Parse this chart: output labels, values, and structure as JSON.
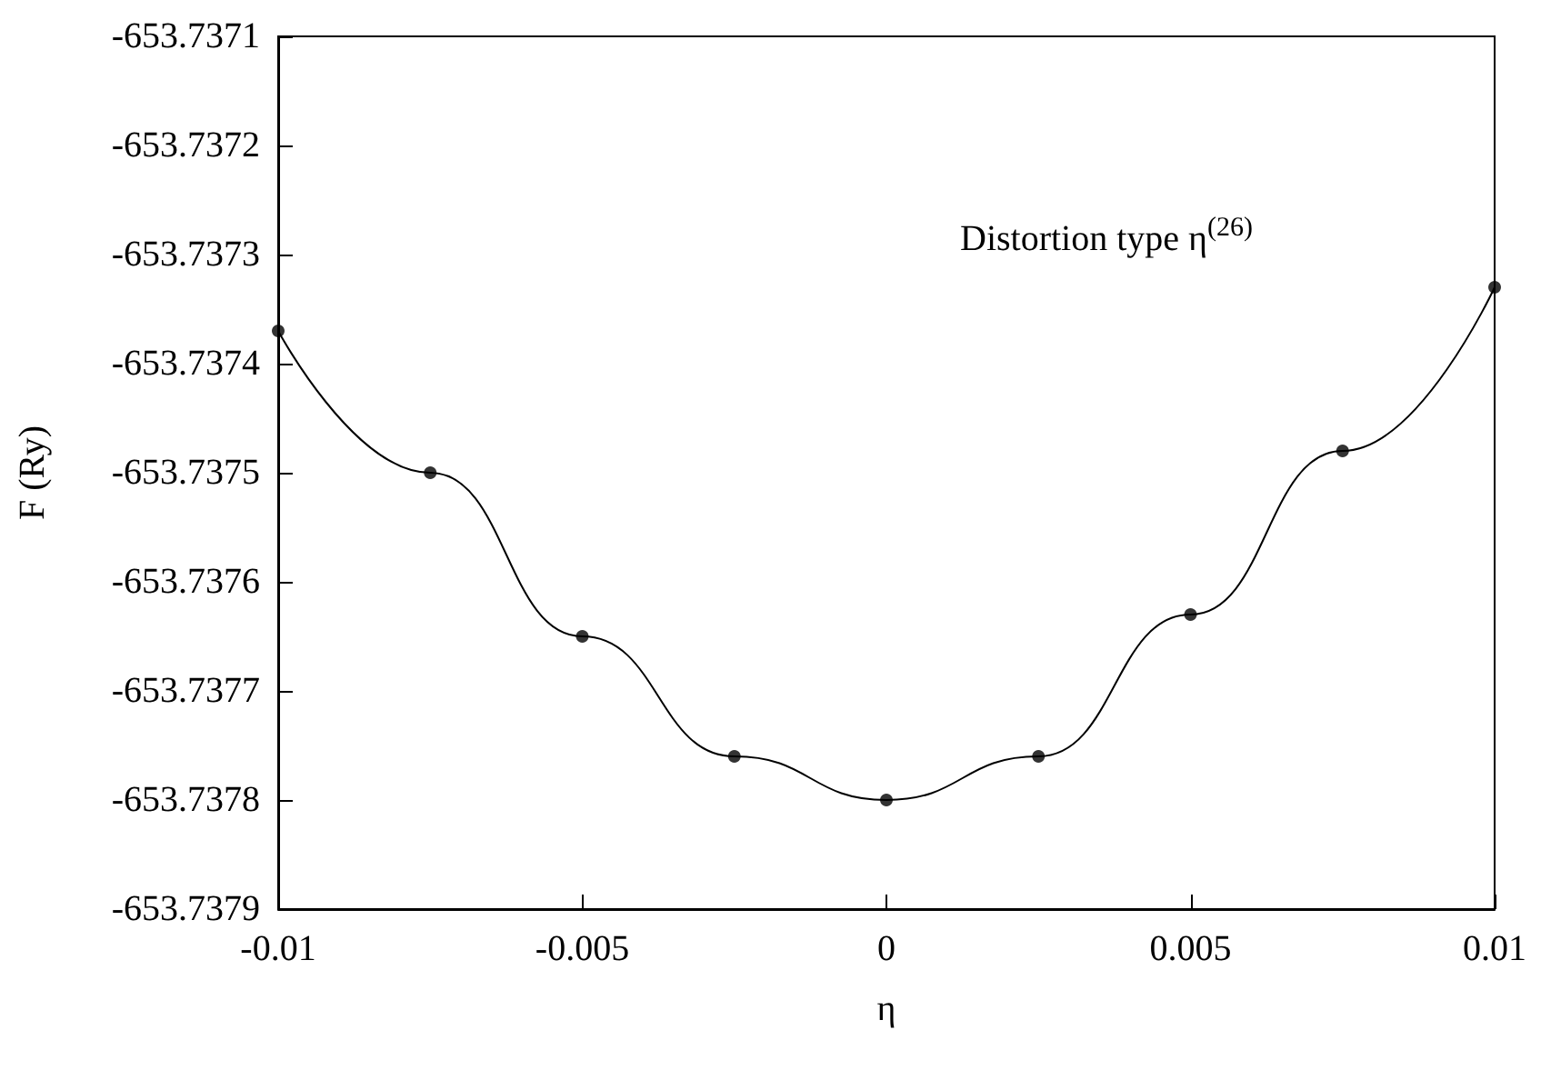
{
  "chart_data": {
    "type": "scatter",
    "xlabel": "η",
    "ylabel": "F (Ry)",
    "annotations": [
      "Distortion type η$^{(26)}$"
    ],
    "x": [
      -0.01,
      -0.0075,
      -0.005,
      -0.0025,
      0,
      0.0025,
      0.005,
      0.0075,
      0.01
    ],
    "series": [
      {
        "color": "#000000",
        "values": [
          -653.73737,
          -653.7375,
          -653.73765,
          -653.73776,
          -653.7378,
          -653.73776,
          -653.73763,
          -653.73748,
          -653.73733
        ]
      },
      {
        "type": "line",
        "marker": "none",
        "color": "#000000",
        "x": [
          -0.01,
          -0.0075,
          -0.005,
          -0.0025,
          0,
          0.0025,
          0.005,
          0.0075,
          0.01
        ],
        "values": [
          -653.73737,
          -653.7375,
          -653.73765,
          -653.73776,
          -653.7378,
          -653.73776,
          -653.73763,
          -653.73748,
          -653.73733
        ]
      }
    ],
    "marker": "circle",
    "xlim": [
      -0.01,
      0.01
    ],
    "xticks": [
      -0.01,
      -0.005,
      0,
      0.005,
      0.01
    ],
    "ylim": [
      -653.7379,
      -653.7371
    ],
    "yticks": [
      -653.7379,
      -653.7378,
      -653.7377,
      -653.7376,
      -653.7375,
      -653.7374,
      -653.7373,
      -653.7372,
      -653.7371
    ],
    "grid": false
  }
}
